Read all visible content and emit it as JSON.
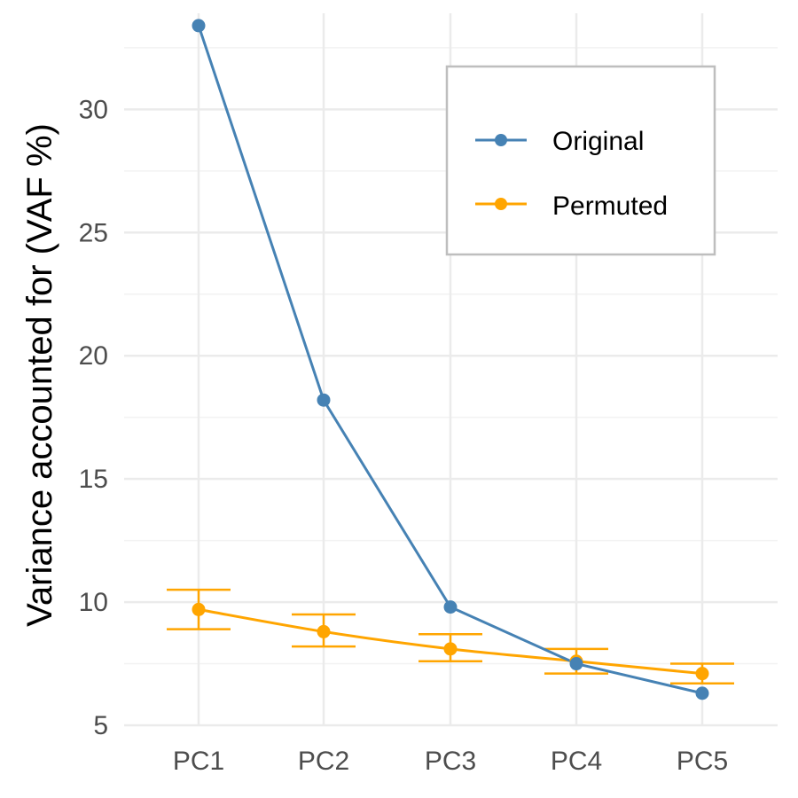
{
  "chart_data": {
    "type": "line",
    "title": "",
    "xlabel": "",
    "ylabel": "Variance accounted for (VAF %)",
    "categories": [
      "PC1",
      "PC2",
      "PC3",
      "PC4",
      "PC5"
    ],
    "ylim": [
      5,
      33.9
    ],
    "y_major_ticks": [
      5,
      10,
      15,
      20,
      25,
      30
    ],
    "y_minor_ticks": [
      7.5,
      12.5,
      17.5,
      22.5,
      27.5,
      32.5
    ],
    "grid": true,
    "legend_position": "top-right",
    "series": [
      {
        "name": "Original",
        "color": "#4682b4",
        "values": [
          33.4,
          18.2,
          9.8,
          7.5,
          6.3
        ]
      },
      {
        "name": "Permuted",
        "color": "#ffa500",
        "values": [
          9.7,
          8.8,
          8.1,
          7.6,
          7.1
        ],
        "error_lower": [
          8.9,
          8.2,
          7.6,
          7.1,
          6.7
        ],
        "error_upper": [
          10.5,
          9.5,
          8.7,
          8.1,
          7.5
        ]
      }
    ]
  }
}
